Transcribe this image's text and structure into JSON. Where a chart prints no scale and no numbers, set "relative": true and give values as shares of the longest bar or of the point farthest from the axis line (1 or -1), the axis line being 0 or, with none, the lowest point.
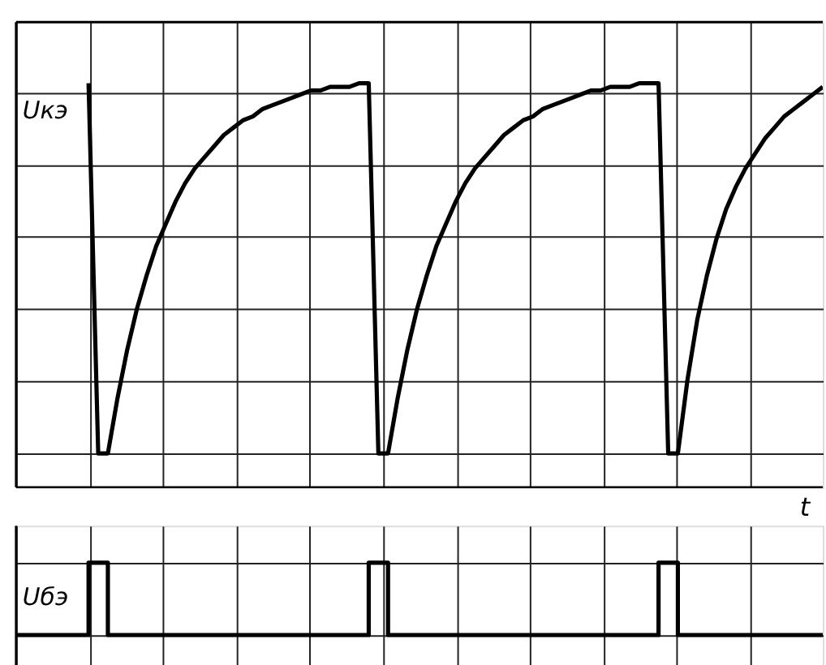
{
  "chart_data": [
    {
      "type": "line",
      "relative": true,
      "ylabel": "Uкэ",
      "xlabel": "t",
      "grid": true,
      "categories": [
        null,
        null,
        null,
        null,
        null,
        null,
        null,
        null,
        null,
        null,
        null,
        null,
        null,
        null,
        null,
        null,
        null,
        null,
        null,
        null,
        null,
        null,
        null,
        null,
        null,
        null,
        null,
        null,
        null,
        null,
        null,
        null,
        null,
        null,
        null,
        null,
        null,
        null,
        null,
        null,
        null,
        null,
        null,
        null,
        null,
        null,
        null,
        null,
        null,
        null,
        null,
        null,
        null,
        null,
        null,
        null,
        null,
        null,
        null,
        null,
        null,
        null,
        null,
        null,
        null,
        null,
        null,
        null,
        null,
        null,
        null,
        null,
        null,
        null,
        null,
        null,
        null,
        null,
        null,
        null,
        null,
        null,
        null,
        null,
        null
      ],
      "series": [
        {
          "color": "#000000",
          "values": [
            null,
            null,
            null,
            null,
            null,
            null,
            null,
            null,
            1,
            0,
            0,
            0.15,
            0.28,
            0.39,
            0.48,
            0.56,
            0.62,
            0.68,
            0.73,
            0.77,
            0.8,
            0.83,
            0.86,
            0.88,
            0.9,
            0.91,
            0.93,
            0.94,
            0.95,
            0.96,
            0.97,
            0.98,
            0.98,
            0.99,
            0.99,
            0.99,
            1,
            1,
            0,
            0,
            0.15,
            0.28,
            0.39,
            0.48,
            0.56,
            0.62,
            0.68,
            0.73,
            0.77,
            0.8,
            0.83,
            0.86,
            0.88,
            0.9,
            0.91,
            0.93,
            0.94,
            0.95,
            0.96,
            0.97,
            0.98,
            0.98,
            0.99,
            0.99,
            0.99,
            1,
            1,
            1,
            0,
            0,
            0.2,
            0.36,
            0.48,
            0.58,
            0.66,
            0.72,
            0.77,
            0.81,
            0.85,
            0.88,
            0.91,
            0.93,
            0.95,
            0.97,
            0.99
          ]
        }
      ]
    },
    {
      "type": "step",
      "relative": true,
      "ylabel": "Uбэ",
      "grid": true,
      "categories": [
        null,
        null,
        null,
        null,
        null,
        null,
        null,
        null,
        null,
        null,
        null,
        null,
        null,
        null,
        null,
        null,
        null,
        null,
        null,
        null,
        null,
        null,
        null,
        null,
        null,
        null,
        null,
        null,
        null,
        null,
        null,
        null,
        null,
        null,
        null,
        null,
        null,
        null,
        null,
        null,
        null,
        null,
        null,
        null,
        null,
        null,
        null,
        null,
        null,
        null,
        null,
        null,
        null,
        null,
        null,
        null,
        null,
        null,
        null,
        null,
        null,
        null,
        null,
        null,
        null,
        null,
        null,
        null,
        null,
        null,
        null,
        null,
        null,
        null,
        null,
        null,
        null,
        null,
        null,
        null,
        null,
        null,
        null,
        null,
        null
      ],
      "series": [
        {
          "color": "#000000",
          "values": [
            0,
            0,
            0,
            0,
            0,
            0,
            0,
            0,
            1,
            1,
            0,
            0,
            0,
            0,
            0,
            0,
            0,
            0,
            0,
            0,
            0,
            0,
            0,
            0,
            0,
            0,
            0,
            0,
            0,
            0,
            0,
            0,
            0,
            0,
            0,
            0,
            0,
            1,
            1,
            0,
            0,
            0,
            0,
            0,
            0,
            0,
            0,
            0,
            0,
            0,
            0,
            0,
            0,
            0,
            0,
            0,
            0,
            0,
            0,
            0,
            0,
            0,
            0,
            0,
            0,
            0,
            0,
            1,
            1,
            0,
            0,
            0,
            0,
            0,
            0,
            0,
            0,
            0,
            0,
            0,
            0,
            0,
            0,
            0,
            0
          ]
        }
      ]
    }
  ]
}
